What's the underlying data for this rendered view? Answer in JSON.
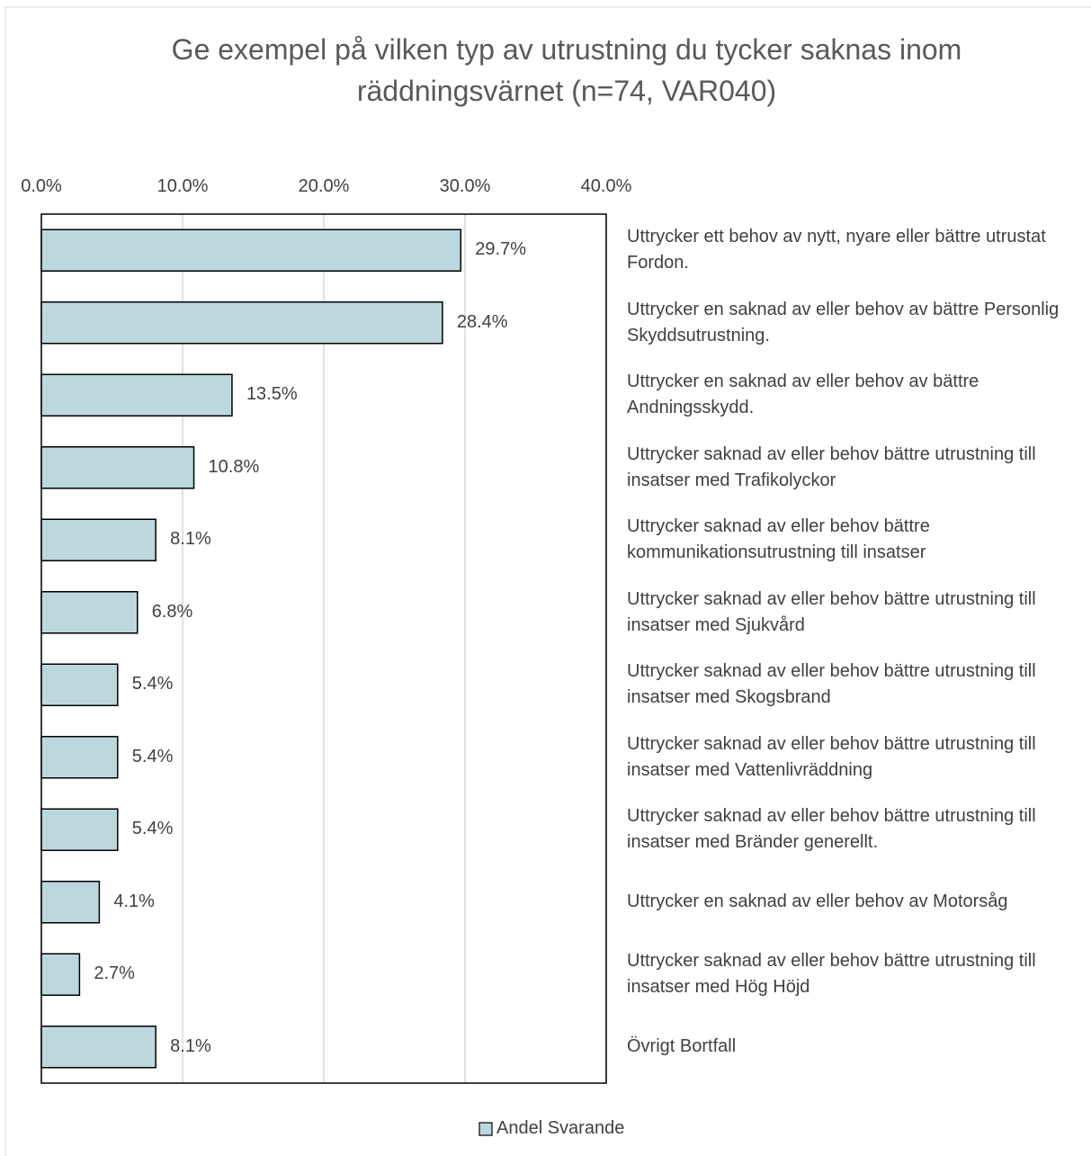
{
  "chart_data": {
    "type": "bar",
    "orientation": "horizontal",
    "title": "Ge exempel på vilken typ av utrustning du tycker saknas inom räddningsvärnet (n=74, VAR040)",
    "categories": [
      "Uttrycker ett behov av nytt, nyare eller bättre utrustat Fordon.",
      "Uttrycker en saknad av eller behov av bättre Personlig Skyddsutrustning.",
      "Uttrycker en saknad av eller behov av bättre Andningsskydd.",
      "Uttrycker saknad av eller behov bättre utrustning till insatser med Trafikolyckor",
      "Uttrycker saknad av eller behov bättre kommunikationsutrustning till insatser",
      "Uttrycker saknad av eller behov bättre utrustning till insatser med Sjukvård",
      "Uttrycker saknad av eller behov bättre utrustning till insatser med Skogsbrand",
      "Uttrycker saknad av eller behov bättre utrustning till insatser med Vattenlivräddning",
      "Uttrycker saknad av eller behov bättre utrustning till insatser med Bränder generellt.",
      "Uttrycker en saknad av eller behov av Motorsåg",
      "Uttrycker saknad av eller behov bättre utrustning till insatser med Hög Höjd",
      "Övrigt Bortfall"
    ],
    "series": [
      {
        "name": "Andel Svarande",
        "color": "#bdd7df",
        "values": [
          29.7,
          28.4,
          13.5,
          10.8,
          8.1,
          6.8,
          5.4,
          5.4,
          5.4,
          4.1,
          2.7,
          8.1
        ],
        "value_labels": [
          "29.7%",
          "28.4%",
          "13.5%",
          "10.8%",
          "8.1%",
          "6.8%",
          "5.4%",
          "5.4%",
          "5.4%",
          "4.1%",
          "2.7%",
          "8.1%"
        ]
      }
    ],
    "xlim": [
      0,
      40
    ],
    "xticks": [
      {
        "value": 0,
        "label": "0.0%"
      },
      {
        "value": 10,
        "label": "10.0%"
      },
      {
        "value": 20,
        "label": "20.0%"
      },
      {
        "value": 30,
        "label": "30.0%"
      },
      {
        "value": 40,
        "label": "40.0%"
      }
    ],
    "grid": true,
    "legend": "bottom"
  }
}
